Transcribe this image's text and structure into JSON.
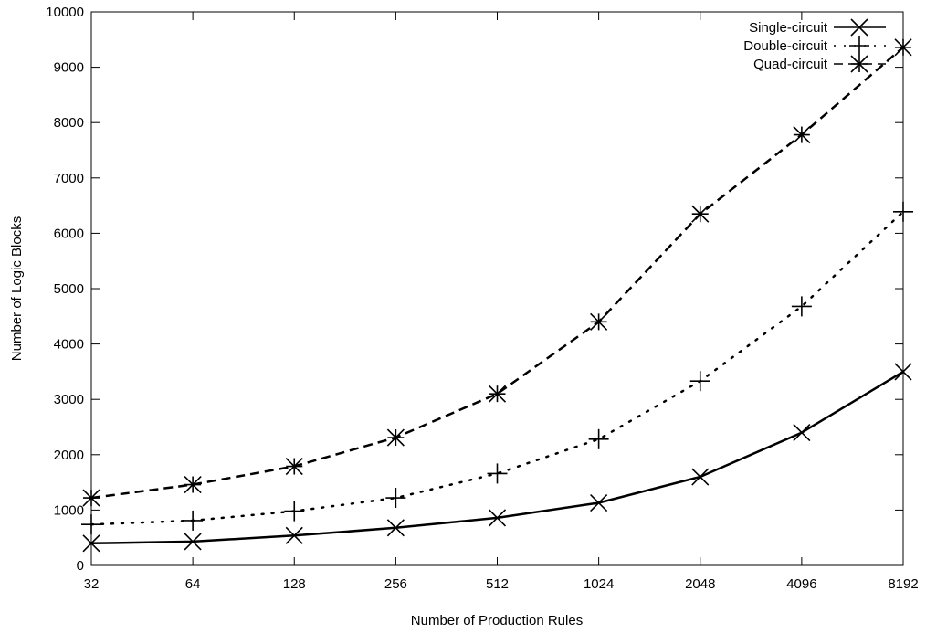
{
  "chart_data": {
    "type": "line",
    "title": "",
    "xlabel": "Number of Production Rules",
    "ylabel": "Number of Logic Blocks",
    "x": [
      32,
      64,
      128,
      256,
      512,
      1024,
      2048,
      4096,
      8192
    ],
    "x_tick_labels": [
      "32",
      "64",
      "128",
      "256",
      "512",
      "1024",
      "2048",
      "4096",
      "8192"
    ],
    "x_scale": "log2",
    "ylim": [
      0,
      10000
    ],
    "y_ticks": [
      0,
      1000,
      2000,
      3000,
      4000,
      5000,
      6000,
      7000,
      8000,
      9000,
      10000
    ],
    "y_tick_labels": [
      "0",
      "1000",
      "2000",
      "3000",
      "4000",
      "5000",
      "6000",
      "7000",
      "8000",
      "9000",
      "10000"
    ],
    "grid": false,
    "legend_position": "top-right",
    "series": [
      {
        "name": "Single-circuit",
        "marker": "x-icon",
        "line_style": "solid",
        "values": [
          400,
          430,
          540,
          680,
          860,
          1130,
          1600,
          2400,
          3500
        ]
      },
      {
        "name": "Double-circuit",
        "marker": "plus-icon",
        "line_style": "dotted",
        "values": [
          740,
          810,
          980,
          1220,
          1660,
          2280,
          3330,
          4680,
          6390
        ]
      },
      {
        "name": "Quad-circuit",
        "marker": "star-icon",
        "line_style": "dashed",
        "values": [
          1220,
          1460,
          1790,
          2310,
          3100,
          4400,
          6350,
          7780,
          9360
        ]
      }
    ]
  }
}
